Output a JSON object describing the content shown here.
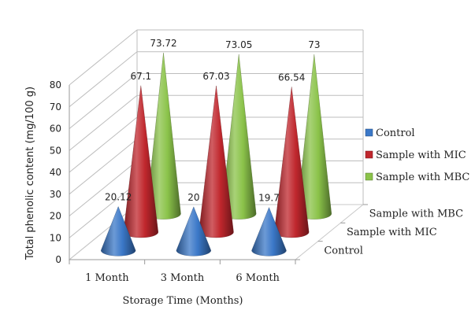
{
  "chart_data": {
    "type": "cone-3d",
    "categories": [
      "1 Month",
      "3 Month",
      "6 Month"
    ],
    "series": [
      {
        "name": "Control",
        "values": [
          20.12,
          20,
          19.7
        ],
        "color": "#3b78c8"
      },
      {
        "name": "Sample with MIC",
        "values": [
          67.1,
          67.03,
          66.54
        ],
        "color": "#c0272d"
      },
      {
        "name": "Sample with MBC",
        "values": [
          73.72,
          73.05,
          73
        ],
        "color": "#8bc34a"
      }
    ],
    "data_labels": [
      [
        "20.12",
        "20",
        "19.7"
      ],
      [
        "67.1",
        "67.03",
        "66.54"
      ],
      [
        "73.72",
        "73.05",
        "73"
      ]
    ],
    "depth_labels": [
      "Control",
      "Sample with MIC",
      "Sample with MBC"
    ],
    "ylabel": "Total phenolic content (mg/100 g)",
    "xlabel": "Storage Time (Months)",
    "ylim": [
      0,
      80
    ],
    "yticks": [
      0,
      10,
      20,
      30,
      40,
      50,
      60,
      70,
      80
    ],
    "grid": true,
    "legend_position": "right"
  }
}
